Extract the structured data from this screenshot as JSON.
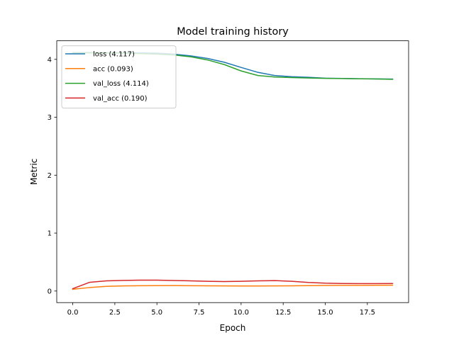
{
  "chart_data": {
    "type": "line",
    "title": "Model training history",
    "xlabel": "Epoch",
    "ylabel": "Metric",
    "xlim": [
      -0.95,
      19.95
    ],
    "ylim": [
      -0.2,
      4.32
    ],
    "xticks": [
      0.0,
      2.5,
      5.0,
      7.5,
      10.0,
      12.5,
      15.0,
      17.5
    ],
    "xtick_labels": [
      "0.0",
      "2.5",
      "5.0",
      "7.5",
      "10.0",
      "12.5",
      "15.0",
      "17.5"
    ],
    "yticks": [
      0,
      1,
      2,
      3,
      4
    ],
    "ytick_labels": [
      "0",
      "1",
      "2",
      "3",
      "4"
    ],
    "grid": false,
    "legend_position": "top-left",
    "x": [
      0,
      1,
      2,
      3,
      4,
      5,
      6,
      7,
      8,
      9,
      10,
      11,
      12,
      13,
      14,
      15,
      16,
      17,
      18,
      19
    ],
    "series": [
      {
        "name": "loss",
        "label": "loss (4.117)",
        "color": "#1f77b4",
        "values": [
          4.117,
          4.116,
          4.114,
          4.112,
          4.11,
          4.105,
          4.09,
          4.06,
          4.015,
          3.95,
          3.86,
          3.775,
          3.72,
          3.7,
          3.69,
          3.675,
          3.67,
          3.665,
          3.662,
          3.66
        ]
      },
      {
        "name": "acc",
        "label": "acc (0.093)",
        "color": "#ff7f0e",
        "values": [
          0.03,
          0.06,
          0.08,
          0.088,
          0.092,
          0.093,
          0.094,
          0.092,
          0.09,
          0.088,
          0.087,
          0.087,
          0.088,
          0.09,
          0.093,
          0.096,
          0.097,
          0.098,
          0.099,
          0.1
        ]
      },
      {
        "name": "val_loss",
        "label": "val_loss (4.114)",
        "color": "#2ca02c",
        "values": [
          4.114,
          4.112,
          4.11,
          4.105,
          4.1,
          4.09,
          4.075,
          4.045,
          3.99,
          3.91,
          3.8,
          3.72,
          3.695,
          3.685,
          3.678,
          3.672,
          3.668,
          3.664,
          3.661,
          3.655
        ]
      },
      {
        "name": "val_acc",
        "label": "val_acc (0.190)",
        "color": "#d62728",
        "values": [
          0.04,
          0.15,
          0.175,
          0.183,
          0.187,
          0.188,
          0.182,
          0.175,
          0.168,
          0.164,
          0.168,
          0.175,
          0.18,
          0.168,
          0.148,
          0.135,
          0.13,
          0.128,
          0.128,
          0.129
        ]
      }
    ]
  }
}
